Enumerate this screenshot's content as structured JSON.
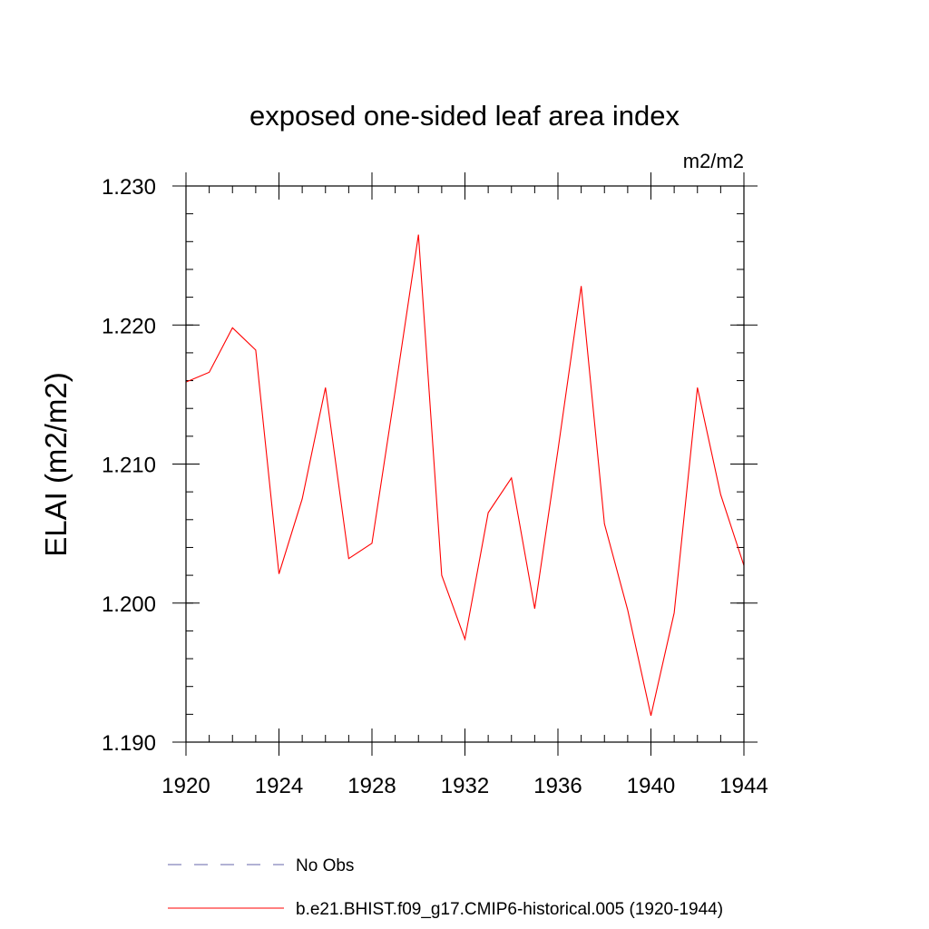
{
  "chart_data": {
    "type": "line",
    "title": "exposed one-sided leaf area index",
    "units": "m2/m2",
    "ylabel": "ELAI  (m2/m2)",
    "xlabel": "",
    "xlim": [
      1920,
      1944
    ],
    "ylim": [
      1.19,
      1.23
    ],
    "x_ticks": [
      1920,
      1924,
      1928,
      1932,
      1936,
      1940,
      1944
    ],
    "x_tick_labels": [
      "1920",
      "1924",
      "1928",
      "1932",
      "1936",
      "1940",
      "1944"
    ],
    "y_ticks": [
      1.19,
      1.2,
      1.21,
      1.22,
      1.23
    ],
    "y_tick_labels": [
      "1.190",
      "1.200",
      "1.210",
      "1.220",
      "1.230"
    ],
    "legend_position": "bottom",
    "series": [
      {
        "name": "b.e21.BHIST.f09_g17.CMIP6-historical.005 (1920-1944)",
        "color": "#ff0000",
        "dash": "solid",
        "x": [
          1920,
          1921,
          1922,
          1923,
          1924,
          1925,
          1926,
          1927,
          1928,
          1929,
          1930,
          1931,
          1932,
          1933,
          1934,
          1935,
          1936,
          1937,
          1938,
          1939,
          1940,
          1941,
          1942,
          1943,
          1944
        ],
        "values": [
          1.2159,
          1.2166,
          1.2198,
          1.2182,
          1.2021,
          1.2075,
          1.2155,
          1.2032,
          1.2043,
          1.2153,
          1.2265,
          1.202,
          1.1974,
          1.2065,
          1.209,
          1.1996,
          1.211,
          1.2228,
          1.2057,
          1.1995,
          1.1919,
          1.1993,
          1.2155,
          1.2078,
          1.2027
        ]
      }
    ],
    "legend": [
      {
        "label": "No Obs",
        "color": "#6666aa",
        "dash": "dashed"
      },
      {
        "label": "b.e21.BHIST.f09_g17.CMIP6-historical.005 (1920-1944)",
        "color": "#ff0000",
        "dash": "solid"
      }
    ]
  }
}
